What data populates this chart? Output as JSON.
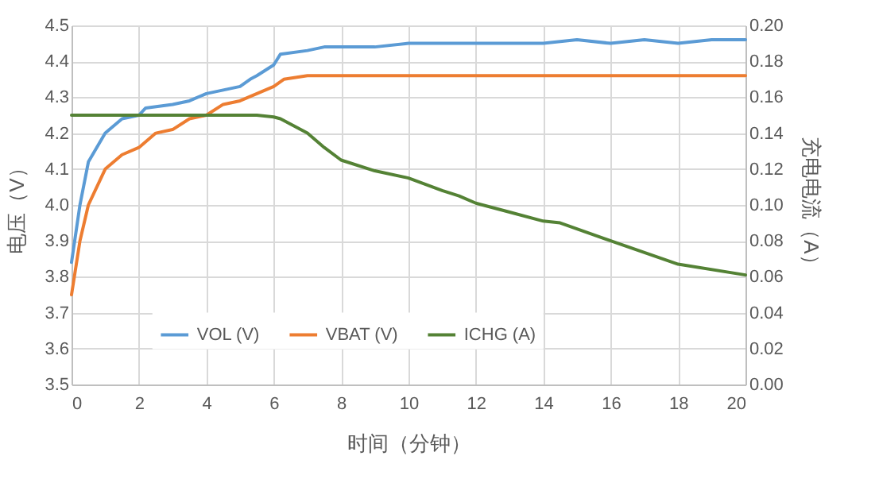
{
  "chart_data": {
    "type": "line",
    "xlabel": "时间（分钟）",
    "ylabel": "电压（V）",
    "y2label": "充电电流（A）",
    "xlim": [
      0,
      20
    ],
    "xticks": [
      0,
      2,
      4,
      6,
      8,
      10,
      12,
      14,
      16,
      18,
      20
    ],
    "ylim": [
      3.5,
      4.5
    ],
    "yticks": [
      3.5,
      3.6,
      3.7,
      3.8,
      3.9,
      {
        "value": 4,
        "label": "4.0"
      },
      4.1,
      4.2,
      4.3,
      4.4,
      4.5
    ],
    "y2lim": [
      0,
      0.2
    ],
    "y2ticks": [
      {
        "value": 0,
        "label": "0.00"
      },
      0.02,
      0.04,
      0.06,
      0.08,
      {
        "value": 0.1,
        "label": "0.10"
      },
      0.12,
      0.14,
      0.16,
      0.18,
      {
        "value": 0.2,
        "label": "0.20"
      }
    ],
    "grid": true,
    "legend": "bottom",
    "marker": "none",
    "line_style": "solid",
    "series": [
      {
        "name": "VOL (V)",
        "color": "#5b9bd5",
        "x": [
          0,
          0.25,
          0.5,
          1,
          1.5,
          2,
          2.2,
          3,
          3.5,
          4,
          4.5,
          5,
          5.3,
          5.5,
          6,
          6.2,
          7,
          7.5,
          8,
          9,
          10,
          11,
          12,
          13,
          14,
          15,
          16,
          17,
          18,
          19,
          20
        ],
        "values": [
          3.84,
          4.0,
          4.12,
          4.2,
          4.24,
          4.25,
          4.27,
          4.28,
          4.29,
          4.31,
          4.32,
          4.33,
          4.35,
          4.36,
          4.39,
          4.42,
          4.43,
          4.44,
          4.44,
          4.44,
          4.45,
          4.45,
          4.45,
          4.45,
          4.45,
          4.46,
          4.45,
          4.46,
          4.45,
          4.46,
          4.46
        ]
      },
      {
        "name": "VBAT (V)",
        "color": "#ed7d31",
        "x": [
          0,
          0.25,
          0.5,
          1,
          1.5,
          2,
          2.5,
          3,
          3.5,
          4,
          4.5,
          5,
          5.5,
          6,
          6.3,
          7,
          8,
          10,
          12,
          14,
          16,
          18,
          20
        ],
        "values": [
          3.75,
          3.9,
          4.0,
          4.1,
          4.14,
          4.16,
          4.2,
          4.21,
          4.24,
          4.25,
          4.28,
          4.29,
          4.31,
          4.33,
          4.35,
          4.36,
          4.36,
          4.36,
          4.36,
          4.36,
          4.36,
          4.36,
          4.36
        ]
      },
      {
        "name": "ICHG (A)",
        "color": "#548235",
        "axis": "y2",
        "x": [
          0,
          1,
          2,
          3,
          4,
          5,
          5.5,
          6,
          6.2,
          7,
          7.5,
          8,
          9,
          10,
          11,
          11.5,
          12,
          13,
          14,
          14.5,
          16,
          18,
          20
        ],
        "values": [
          0.15,
          0.15,
          0.15,
          0.15,
          0.15,
          0.15,
          0.15,
          0.149,
          0.148,
          0.14,
          0.132,
          0.125,
          0.119,
          0.115,
          0.108,
          0.105,
          0.101,
          0.096,
          0.091,
          0.09,
          0.08,
          0.067,
          0.061
        ]
      }
    ]
  }
}
